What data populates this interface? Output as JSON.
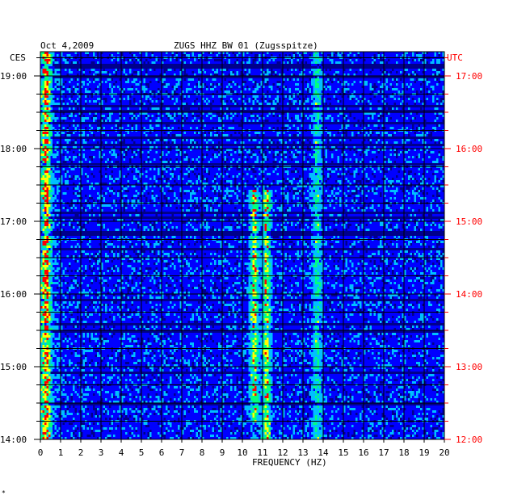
{
  "chart_data": {
    "type": "heatmap",
    "title": "ZUGS HHZ BW 01 (Zugsspitze)",
    "date": "Oct 4,2009",
    "left_timezone": "CES",
    "right_timezone": "UTC",
    "xlabel": "FREQUENCY (HZ)",
    "xlim": [
      0,
      20
    ],
    "x_ticks": [
      "0",
      "1",
      "2",
      "3",
      "4",
      "5",
      "6",
      "7",
      "8",
      "9",
      "10",
      "11",
      "12",
      "13",
      "14",
      "15",
      "16",
      "17",
      "18",
      "19",
      "20"
    ],
    "left_time_labels": [
      "19:00",
      "18:00",
      "17:00",
      "16:00",
      "15:00",
      "14:00"
    ],
    "right_time_labels": [
      "17:00",
      "16:00",
      "15:00",
      "14:00",
      "13:00",
      "12:00"
    ],
    "time_range_ces": [
      "14:00",
      "19:20"
    ],
    "grid": true,
    "colormap": [
      "#00007f",
      "#0000ff",
      "#00bfff",
      "#00ff7f",
      "#ffff00",
      "#ff0000"
    ],
    "background_color": "#00008b",
    "annotation_color": "#ff0000",
    "highlight_bands_hz": [
      {
        "center": 0.3,
        "level": "high"
      },
      {
        "center": 10.6,
        "level": "high",
        "from_ces": "14:15",
        "to_ces": "17:25"
      },
      {
        "center": 11.2,
        "level": "high",
        "from_ces": "14:00",
        "to_ces": "17:25"
      },
      {
        "center": 13.7,
        "level": "medium"
      }
    ]
  },
  "footer_mark": "*"
}
